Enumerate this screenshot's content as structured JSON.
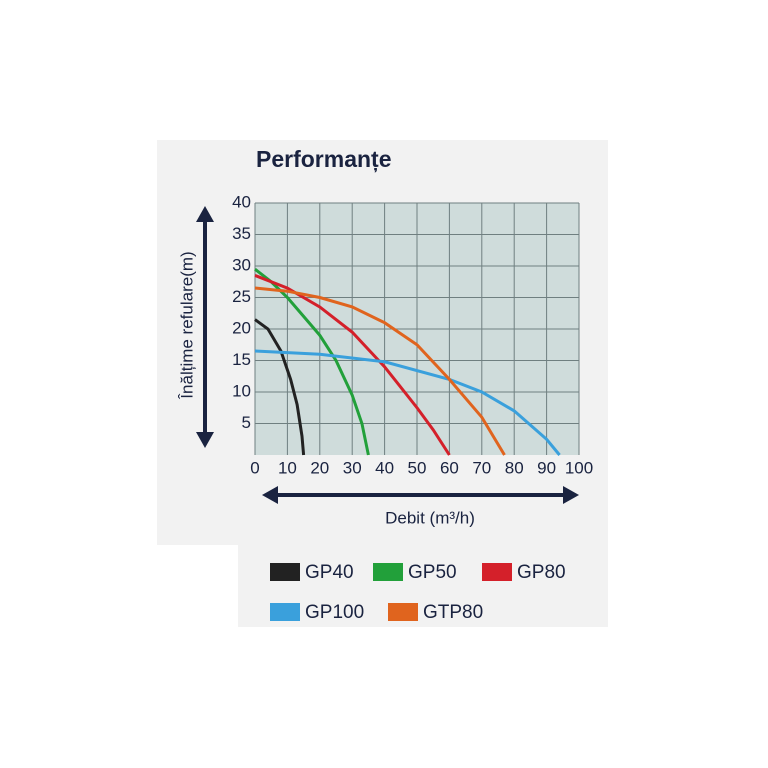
{
  "chart_data": {
    "type": "line",
    "title": "Performanțe",
    "x_label": "Debit (m³/h)",
    "y_label": "Înălțime refulare(m)",
    "xlim": [
      0,
      100
    ],
    "ylim": [
      0,
      40
    ],
    "xticks": [
      0,
      10,
      20,
      30,
      40,
      50,
      60,
      70,
      80,
      90,
      100
    ],
    "yticks": [
      5,
      10,
      15,
      20,
      25,
      30,
      35,
      40
    ],
    "grid": true,
    "legend": "bottom",
    "series": [
      {
        "name": "GP40",
        "color": "#222222",
        "x": [
          0,
          4,
          8,
          11,
          13,
          14.5,
          15
        ],
        "values": [
          21.5,
          20,
          16.5,
          12,
          8,
          3,
          0
        ]
      },
      {
        "name": "GP50",
        "color": "#22a03a",
        "x": [
          0,
          5,
          10,
          15,
          20,
          25,
          30,
          33,
          35
        ],
        "values": [
          29.5,
          27.5,
          25,
          22,
          19,
          15,
          9.5,
          5,
          0
        ]
      },
      {
        "name": "GP80",
        "color": "#d4202a",
        "x": [
          0,
          10,
          20,
          30,
          40,
          50,
          55,
          60
        ],
        "values": [
          28.5,
          26.5,
          23.5,
          19.5,
          14,
          7.5,
          4,
          0
        ]
      },
      {
        "name": "GP100",
        "color": "#3aa0dc",
        "x": [
          0,
          20,
          40,
          60,
          70,
          80,
          90,
          94
        ],
        "values": [
          16.5,
          16,
          14.8,
          12,
          10,
          7,
          2.5,
          0
        ]
      },
      {
        "name": "GTP80",
        "color": "#e0641e",
        "x": [
          0,
          10,
          20,
          30,
          40,
          50,
          60,
          70,
          77
        ],
        "values": [
          26.5,
          26,
          25,
          23.5,
          21,
          17.5,
          12,
          6,
          0
        ]
      }
    ]
  }
}
